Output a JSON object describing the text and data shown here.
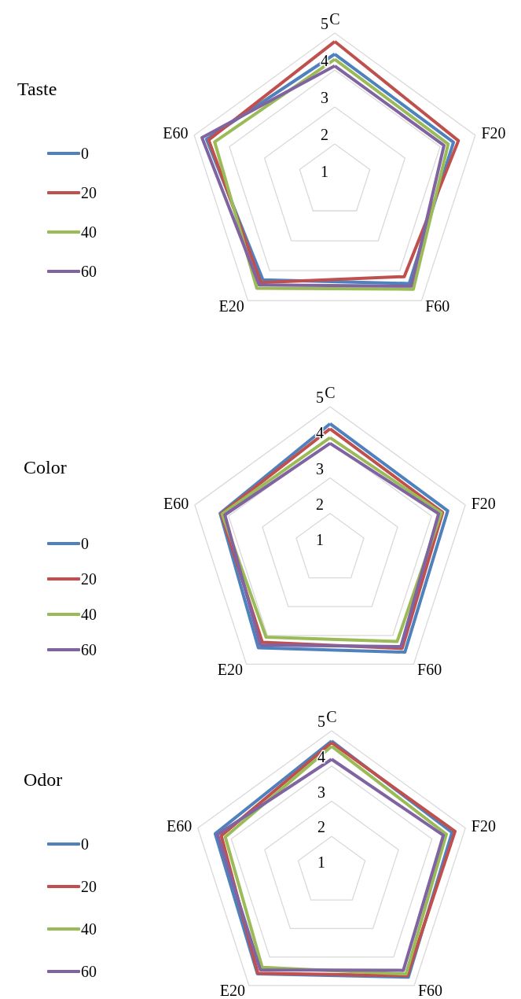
{
  "chart_data": [
    {
      "type": "radar",
      "title": "Taste",
      "categories": [
        "C",
        "F20",
        "F60",
        "E20",
        "E60"
      ],
      "ylim": [
        1,
        5
      ],
      "yticks": [
        1,
        2,
        3,
        4,
        5
      ],
      "grid": true,
      "legend": "left",
      "marker": "none",
      "series": [
        {
          "name": "0",
          "color": "#4f81bd",
          "values": [
            4.43,
            4.38,
            4.43,
            4.31,
            4.65
          ]
        },
        {
          "name": "20",
          "color": "#c0504d",
          "values": [
            4.77,
            4.52,
            4.2,
            4.4,
            4.59
          ]
        },
        {
          "name": "40",
          "color": "#9bbb59",
          "values": [
            4.29,
            4.23,
            4.62,
            4.59,
            4.42
          ]
        },
        {
          "name": "60",
          "color": "#8064a2",
          "values": [
            4.11,
            4.11,
            4.52,
            4.48,
            4.78
          ]
        }
      ]
    },
    {
      "type": "radar",
      "title": "Color",
      "categories": [
        "C",
        "F20",
        "F60",
        "E20",
        "E60"
      ],
      "ylim": [
        1,
        5
      ],
      "yticks": [
        1,
        2,
        3,
        4,
        5
      ],
      "grid": true,
      "legend": "left",
      "marker": "none",
      "series": [
        {
          "name": "0",
          "color": "#4f81bd",
          "values": [
            4.52,
            4.48,
            4.58,
            4.43,
            4.25
          ]
        },
        {
          "name": "20",
          "color": "#c0504d",
          "values": [
            4.38,
            4.33,
            4.45,
            4.24,
            4.22
          ]
        },
        {
          "name": "40",
          "color": "#9bbb59",
          "values": [
            4.13,
            4.29,
            4.21,
            4.06,
            4.19
          ]
        },
        {
          "name": "60",
          "color": "#8064a2",
          "values": [
            3.97,
            4.21,
            4.39,
            4.33,
            4.11
          ]
        }
      ]
    },
    {
      "type": "radar",
      "title": "Odor",
      "categories": [
        "C",
        "F20",
        "F60",
        "E20",
        "E60"
      ],
      "ylim": [
        1,
        5
      ],
      "yticks": [
        1,
        2,
        3,
        4,
        5
      ],
      "grid": true,
      "legend": "left",
      "marker": "none",
      "series": [
        {
          "name": "0",
          "color": "#4f81bd",
          "values": [
            4.71,
            4.6,
            4.71,
            4.59,
            4.48
          ]
        },
        {
          "name": "20",
          "color": "#c0504d",
          "values": [
            4.66,
            4.69,
            4.66,
            4.57,
            4.3
          ]
        },
        {
          "name": "40",
          "color": "#9bbb59",
          "values": [
            4.56,
            4.43,
            4.6,
            4.36,
            4.18
          ]
        },
        {
          "name": "60",
          "color": "#8064a2",
          "values": [
            4.19,
            4.34,
            4.47,
            4.45,
            4.41
          ]
        }
      ]
    }
  ]
}
